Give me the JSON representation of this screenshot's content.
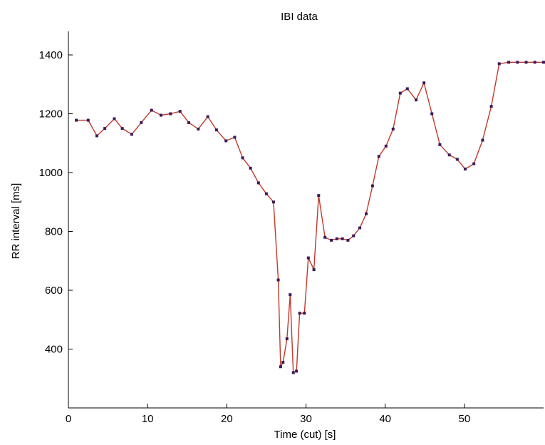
{
  "chart_data": {
    "type": "line",
    "title": "IBI data",
    "xlabel": "Time (cut) [s]",
    "ylabel": "RR interval [ms]",
    "xlim": [
      0,
      60
    ],
    "ylim": [
      200,
      1480
    ],
    "xticks": [
      0,
      10,
      20,
      30,
      40,
      50
    ],
    "yticks": [
      400,
      600,
      800,
      1000,
      1200,
      1400
    ],
    "grid": false,
    "line_color": "#c0392b",
    "marker_color": "#3a1a5a",
    "series": [
      {
        "x": [
          1.0,
          2.5,
          3.6,
          4.6,
          5.8,
          6.8,
          8.0,
          9.2,
          10.5,
          11.7,
          12.9,
          14.1,
          15.2,
          16.4,
          17.6,
          18.7,
          19.9,
          21.0,
          22.0,
          23.0,
          24.0,
          25.0,
          25.9,
          26.5,
          26.8,
          27.1,
          27.6,
          28.0,
          28.4,
          28.8,
          29.2,
          29.8,
          30.3,
          31.0,
          31.6,
          32.4,
          33.2,
          33.9,
          34.6,
          35.3,
          36.0,
          36.8,
          37.6,
          38.4,
          39.2,
          40.1,
          41.0,
          41.9,
          42.8,
          43.9,
          44.9,
          45.9,
          46.9,
          48.1,
          49.1,
          50.1,
          51.2,
          52.3,
          53.4,
          54.4,
          55.6,
          56.7,
          57.8,
          58.9,
          60.0
        ],
        "y": [
          1178,
          1178,
          1125,
          1150,
          1183,
          1150,
          1130,
          1170,
          1212,
          1195,
          1200,
          1208,
          1170,
          1148,
          1190,
          1145,
          1108,
          1120,
          1050,
          1015,
          965,
          928,
          900,
          635,
          340,
          355,
          435,
          585,
          320,
          325,
          522,
          522,
          710,
          670,
          922,
          780,
          770,
          775,
          775,
          770,
          785,
          812,
          860,
          955,
          1055,
          1090,
          1148,
          1270,
          1285,
          1247,
          1305,
          1200,
          1095,
          1060,
          1045,
          1012,
          1030,
          1110,
          1225,
          1370,
          1375,
          1375,
          1375,
          1375,
          1375
        ]
      }
    ]
  }
}
